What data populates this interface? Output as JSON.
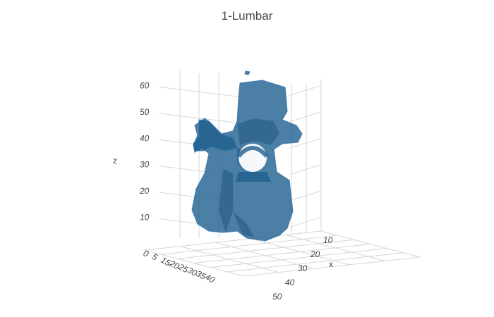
{
  "chart_data": {
    "type": "mesh3d",
    "title": "1-Lumbar",
    "xlabel": "x",
    "ylabel": "",
    "zlabel": "z",
    "x_ticks": [
      "10",
      "20",
      "30",
      "40",
      "50"
    ],
    "y_ticks": [
      "0",
      "5",
      "15",
      "20",
      "25",
      "30",
      "35",
      "40"
    ],
    "z_ticks": [
      "10",
      "20",
      "30",
      "40",
      "50",
      "60"
    ],
    "xlim": [
      5,
      55
    ],
    "ylim": [
      0,
      45
    ],
    "zlim": [
      0,
      62
    ],
    "mesh_color": "#1f5f8f",
    "mesh_opacity": 0.8,
    "grid": true
  }
}
